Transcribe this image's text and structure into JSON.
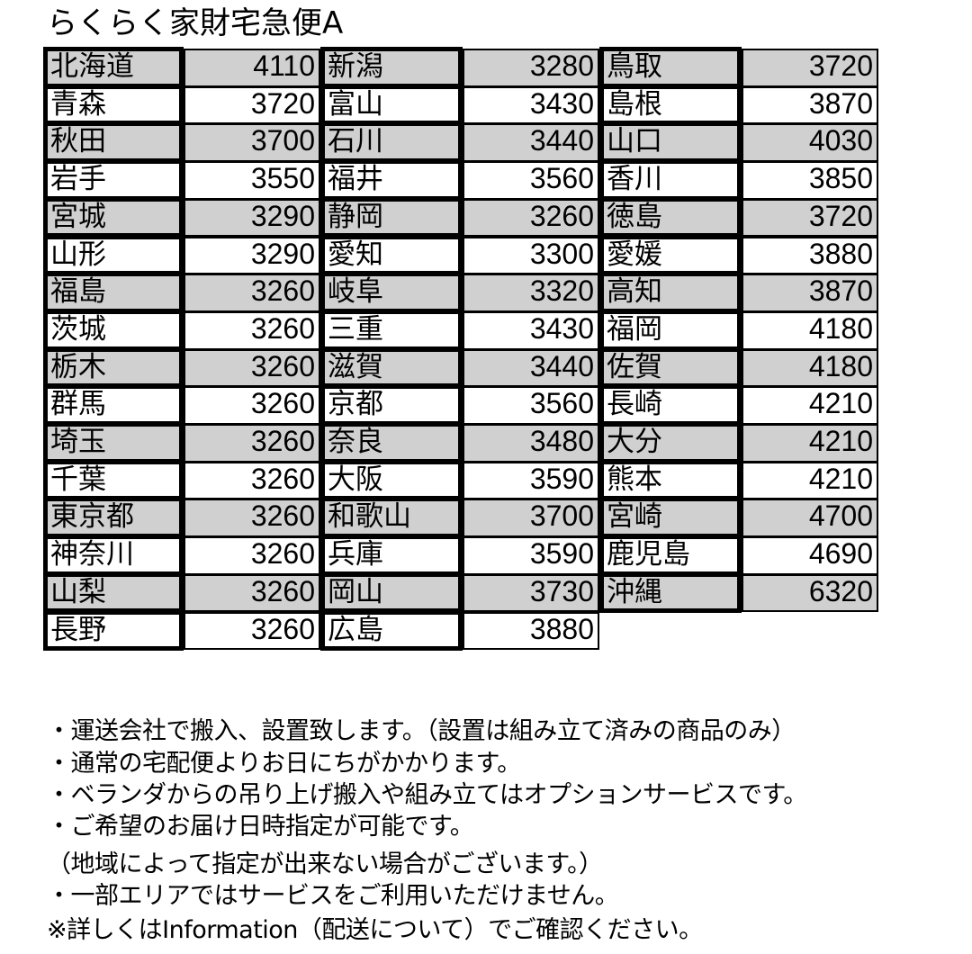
{
  "title": "らくらく家財宅急便A",
  "colors": {
    "shaded_row": "#d0d0d0",
    "border": "#000000"
  },
  "columns": [
    [
      [
        "北海道",
        "4110"
      ],
      [
        "青森",
        "3720"
      ],
      [
        "秋田",
        "3700"
      ],
      [
        "岩手",
        "3550"
      ],
      [
        "宮城",
        "3290"
      ],
      [
        "山形",
        "3290"
      ],
      [
        "福島",
        "3260"
      ],
      [
        "茨城",
        "3260"
      ],
      [
        "栃木",
        "3260"
      ],
      [
        "群馬",
        "3260"
      ],
      [
        "埼玉",
        "3260"
      ],
      [
        "千葉",
        "3260"
      ],
      [
        "東京都",
        "3260"
      ],
      [
        "神奈川",
        "3260"
      ],
      [
        "山梨",
        "3260"
      ],
      [
        "長野",
        "3260"
      ]
    ],
    [
      [
        "新潟",
        "3280"
      ],
      [
        "富山",
        "3430"
      ],
      [
        "石川",
        "3440"
      ],
      [
        "福井",
        "3560"
      ],
      [
        "静岡",
        "3260"
      ],
      [
        "愛知",
        "3300"
      ],
      [
        "岐阜",
        "3320"
      ],
      [
        "三重",
        "3430"
      ],
      [
        "滋賀",
        "3440"
      ],
      [
        "京都",
        "3560"
      ],
      [
        "奈良",
        "3480"
      ],
      [
        "大阪",
        "3590"
      ],
      [
        "和歌山",
        "3700"
      ],
      [
        "兵庫",
        "3590"
      ],
      [
        "岡山",
        "3730"
      ],
      [
        "広島",
        "3880"
      ]
    ],
    [
      [
        "鳥取",
        "3720"
      ],
      [
        "島根",
        "3870"
      ],
      [
        "山口",
        "4030"
      ],
      [
        "香川",
        "3850"
      ],
      [
        "徳島",
        "3720"
      ],
      [
        "愛媛",
        "3880"
      ],
      [
        "高知",
        "3870"
      ],
      [
        "福岡",
        "4180"
      ],
      [
        "佐賀",
        "4180"
      ],
      [
        "長崎",
        "4210"
      ],
      [
        "大分",
        "4210"
      ],
      [
        "熊本",
        "4210"
      ],
      [
        "宮崎",
        "4700"
      ],
      [
        "鹿児島",
        "4690"
      ],
      [
        "沖縄",
        "6320"
      ]
    ]
  ],
  "notes": [
    "・運送会社で搬入、設置致します。（設置は組み立て済みの商品のみ）",
    "・通常の宅配便よりお日にちがかかります。",
    "・ベランダからの吊り上げ搬入や組み立てはオプションサービスです。",
    "・ご希望のお届け日時指定が可能です。",
    "（地域によって指定が出来ない場合がございます。）",
    "・一部エリアではサービスをご利用いただけません。",
    "※詳しくはInformation（配送について）でご確認ください。"
  ]
}
